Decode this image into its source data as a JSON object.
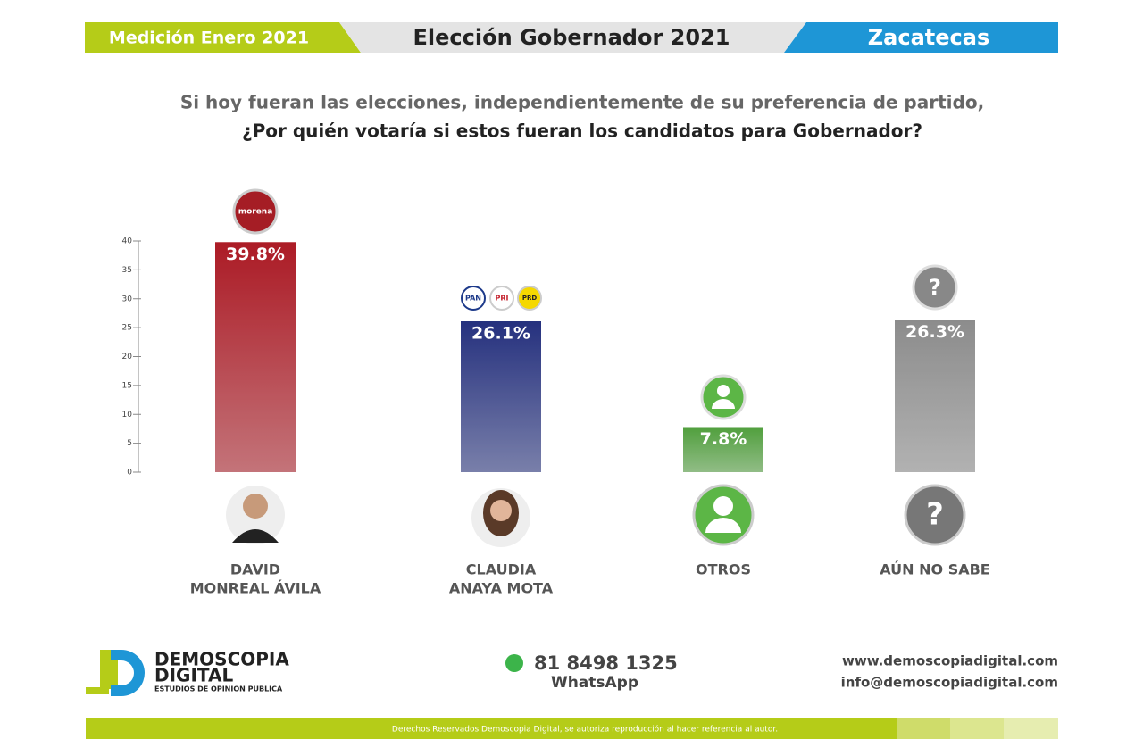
{
  "header": {
    "left": "Medición Enero 2021",
    "center": "Elección Gobernador 2021",
    "right": "Zacatecas"
  },
  "question": {
    "line1": "Si hoy fueran las elecciones, independientemente de su preferencia de partido,",
    "line2": "¿Por quién votaría si estos fueran los candidatos para Gobernador?"
  },
  "chart_data": {
    "type": "bar",
    "categories": [
      [
        "DAVID",
        "MONREAL ÁVILA"
      ],
      [
        "CLAUDIA",
        "ANAYA MOTA"
      ],
      [
        "OTROS"
      ],
      [
        "AÚN NO SABE"
      ]
    ],
    "values": [
      39.8,
      26.1,
      7.8,
      26.3
    ],
    "value_labels": [
      "39.8%",
      "26.1%",
      "7.8%",
      "26.3%"
    ],
    "colors": [
      "#c41f2b",
      "#2b3890",
      "#5cb646",
      "#a0a0a0"
    ],
    "ylim": [
      0,
      40
    ],
    "yticks": [
      0,
      5,
      10,
      15,
      20,
      25,
      30,
      35,
      40
    ]
  },
  "logos": {
    "morena": "morena",
    "pan": "PAN",
    "pri": "PRI",
    "prd": "PRD",
    "unknown": "?"
  },
  "footer": {
    "brand1": "DEMOSCOPIA",
    "brand2": "DIGITAL",
    "tagline": "ESTUDIOS DE OPINIÓN PÚBLICA",
    "phone": "81 8498 1325",
    "whatsapp": "WhatsApp",
    "web": "www.demoscopiadigital.com",
    "email": "info@demoscopiadigital.com",
    "copyright": "Derechos Reservados Demoscopia Digital, se autoriza reproducción al hacer referencia al autor."
  }
}
